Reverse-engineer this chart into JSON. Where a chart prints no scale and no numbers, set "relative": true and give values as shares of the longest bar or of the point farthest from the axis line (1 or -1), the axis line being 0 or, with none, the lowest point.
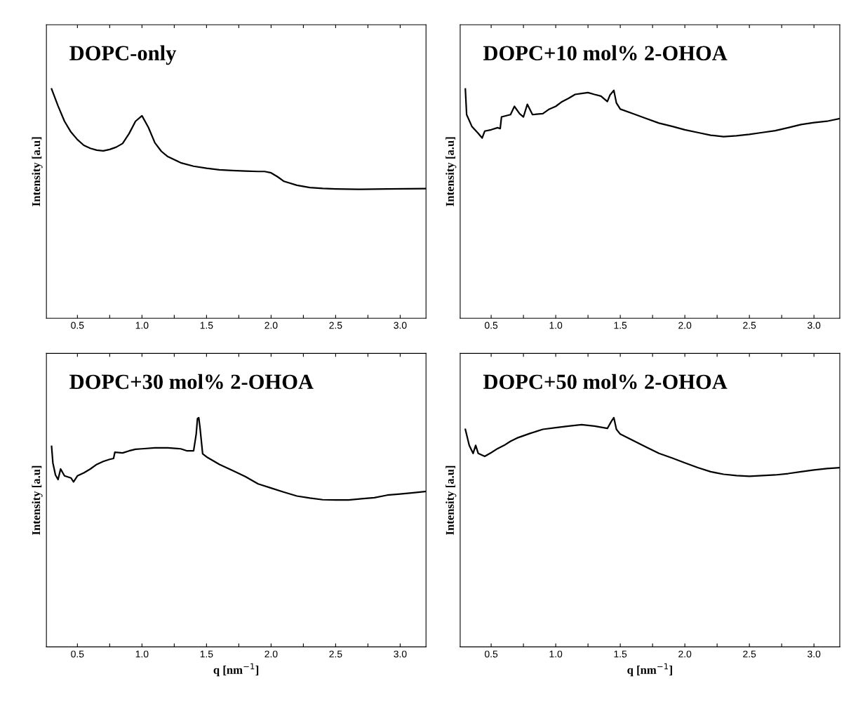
{
  "chart_data": [
    {
      "type": "line",
      "title": "DOPC-only",
      "ylabel": "Intensity [a.u]",
      "relative": true,
      "xlim": [
        0.26,
        3.2
      ],
      "xticks": [
        {
          "value": 0.5,
          "label": "0.5"
        },
        {
          "value": 0.75,
          "label": null
        },
        {
          "value": 1.0,
          "label": "1.0"
        },
        {
          "value": 1.25,
          "label": null
        },
        {
          "value": 1.5,
          "label": "1.5"
        },
        {
          "value": 1.75,
          "label": null
        },
        {
          "value": 2.0,
          "label": "2.0"
        },
        {
          "value": 2.25,
          "label": null
        },
        {
          "value": 2.5,
          "label": "2.5"
        },
        {
          "value": 2.75,
          "label": null
        },
        {
          "value": 3.0,
          "label": "3.0"
        }
      ],
      "grid": false,
      "legend": false,
      "marker": "none",
      "line_style": "solid",
      "series": [
        {
          "color": "#000000",
          "x": [
            0.3,
            0.35,
            0.4,
            0.45,
            0.5,
            0.55,
            0.6,
            0.65,
            0.7,
            0.75,
            0.8,
            0.85,
            0.9,
            0.95,
            1.0,
            1.05,
            1.1,
            1.15,
            1.2,
            1.3,
            1.4,
            1.5,
            1.6,
            1.7,
            1.8,
            1.9,
            1.95,
            2.0,
            2.05,
            2.1,
            2.2,
            2.3,
            2.4,
            2.5,
            2.7,
            2.9,
            3.2
          ],
          "values": [
            1.0,
            0.926,
            0.859,
            0.812,
            0.779,
            0.754,
            0.741,
            0.733,
            0.73,
            0.736,
            0.746,
            0.762,
            0.805,
            0.859,
            0.883,
            0.832,
            0.765,
            0.728,
            0.705,
            0.678,
            0.663,
            0.654,
            0.647,
            0.644,
            0.642,
            0.64,
            0.64,
            0.634,
            0.617,
            0.597,
            0.58,
            0.57,
            0.566,
            0.564,
            0.562,
            0.564,
            0.565
          ]
        }
      ]
    },
    {
      "type": "line",
      "title": "DOPC+10 mol% 2-OHOA",
      "ylabel": "Intensity [a.u]",
      "relative": true,
      "xlim": [
        0.26,
        3.2
      ],
      "xticks": [
        {
          "value": 0.5,
          "label": "0.5"
        },
        {
          "value": 0.75,
          "label": null
        },
        {
          "value": 1.0,
          "label": "1.0"
        },
        {
          "value": 1.25,
          "label": null
        },
        {
          "value": 1.5,
          "label": "1.5"
        },
        {
          "value": 1.75,
          "label": null
        },
        {
          "value": 2.0,
          "label": "2.0"
        },
        {
          "value": 2.25,
          "label": null
        },
        {
          "value": 2.5,
          "label": "2.5"
        },
        {
          "value": 2.75,
          "label": null
        },
        {
          "value": 3.0,
          "label": "3.0"
        }
      ],
      "grid": false,
      "legend": false,
      "marker": "none",
      "line_style": "solid",
      "series": [
        {
          "color": "#000000",
          "x": [
            0.3,
            0.31,
            0.35,
            0.4,
            0.43,
            0.45,
            0.5,
            0.55,
            0.57,
            0.58,
            0.65,
            0.68,
            0.72,
            0.75,
            0.78,
            0.82,
            0.9,
            0.95,
            1.0,
            1.05,
            1.1,
            1.15,
            1.2,
            1.25,
            1.3,
            1.35,
            1.4,
            1.42,
            1.45,
            1.47,
            1.5,
            1.6,
            1.7,
            1.8,
            1.9,
            2.0,
            2.1,
            2.2,
            2.3,
            2.4,
            2.5,
            2.6,
            2.7,
            2.8,
            2.9,
            3.0,
            3.1,
            3.2
          ],
          "values": [
            1.0,
            0.888,
            0.837,
            0.806,
            0.786,
            0.816,
            0.822,
            0.831,
            0.827,
            0.878,
            0.888,
            0.924,
            0.892,
            0.878,
            0.933,
            0.888,
            0.892,
            0.912,
            0.924,
            0.945,
            0.959,
            0.976,
            0.98,
            0.984,
            0.976,
            0.969,
            0.945,
            0.973,
            0.994,
            0.939,
            0.912,
            0.892,
            0.871,
            0.851,
            0.837,
            0.822,
            0.81,
            0.798,
            0.792,
            0.796,
            0.802,
            0.81,
            0.818,
            0.831,
            0.845,
            0.853,
            0.859,
            0.871
          ]
        }
      ]
    },
    {
      "type": "line",
      "title": "DOPC+30 mol% 2-OHOA",
      "xlabel": "q [nm$^{−1}$]",
      "ylabel": "Intensity [a.u]",
      "relative": true,
      "xlim": [
        0.26,
        3.2
      ],
      "xticks": [
        {
          "value": 0.5,
          "label": "0.5"
        },
        {
          "value": 0.75,
          "label": null
        },
        {
          "value": 1.0,
          "label": "1.0"
        },
        {
          "value": 1.25,
          "label": null
        },
        {
          "value": 1.5,
          "label": "1.5"
        },
        {
          "value": 1.75,
          "label": null
        },
        {
          "value": 2.0,
          "label": "2.0"
        },
        {
          "value": 2.25,
          "label": null
        },
        {
          "value": 2.5,
          "label": "2.5"
        },
        {
          "value": 2.75,
          "label": null
        },
        {
          "value": 3.0,
          "label": "3.0"
        }
      ],
      "grid": false,
      "legend": false,
      "marker": "none",
      "line_style": "solid",
      "series": [
        {
          "color": "#000000",
          "x": [
            0.3,
            0.31,
            0.33,
            0.35,
            0.37,
            0.4,
            0.45,
            0.47,
            0.5,
            0.55,
            0.6,
            0.65,
            0.7,
            0.75,
            0.78,
            0.79,
            0.85,
            0.9,
            0.95,
            1.0,
            1.1,
            1.2,
            1.3,
            1.35,
            1.4,
            1.42,
            1.43,
            1.44,
            1.45,
            1.47,
            1.5,
            1.6,
            1.7,
            1.8,
            1.9,
            2.0,
            2.1,
            2.2,
            2.3,
            2.4,
            2.5,
            2.6,
            2.7,
            2.8,
            2.9,
            3.0,
            3.1,
            3.2
          ],
          "values": [
            0.875,
            0.803,
            0.75,
            0.73,
            0.776,
            0.746,
            0.737,
            0.72,
            0.746,
            0.759,
            0.776,
            0.796,
            0.809,
            0.818,
            0.822,
            0.849,
            0.846,
            0.855,
            0.862,
            0.864,
            0.868,
            0.868,
            0.864,
            0.855,
            0.855,
            0.928,
            0.996,
            1.0,
            0.954,
            0.842,
            0.829,
            0.796,
            0.77,
            0.743,
            0.711,
            0.693,
            0.675,
            0.658,
            0.649,
            0.642,
            0.641,
            0.641,
            0.646,
            0.651,
            0.662,
            0.667,
            0.672,
            0.678
          ]
        }
      ]
    },
    {
      "type": "line",
      "title": "DOPC+50 mol% 2-OHOA",
      "xlabel": "q [nm$^{−1}$]",
      "ylabel": "Intensity [a.u]",
      "relative": true,
      "xlim": [
        0.26,
        3.2
      ],
      "xticks": [
        {
          "value": 0.5,
          "label": "0.5"
        },
        {
          "value": 0.75,
          "label": null
        },
        {
          "value": 1.0,
          "label": "1.0"
        },
        {
          "value": 1.25,
          "label": null
        },
        {
          "value": 1.5,
          "label": "1.5"
        },
        {
          "value": 1.75,
          "label": null
        },
        {
          "value": 2.0,
          "label": "2.0"
        },
        {
          "value": 2.25,
          "label": null
        },
        {
          "value": 2.5,
          "label": "2.5"
        },
        {
          "value": 2.75,
          "label": null
        },
        {
          "value": 3.0,
          "label": "3.0"
        }
      ],
      "grid": false,
      "legend": false,
      "marker": "none",
      "line_style": "solid",
      "series": [
        {
          "color": "#000000",
          "x": [
            0.3,
            0.33,
            0.36,
            0.38,
            0.4,
            0.45,
            0.5,
            0.55,
            0.6,
            0.65,
            0.7,
            0.8,
            0.9,
            1.0,
            1.1,
            1.2,
            1.3,
            1.4,
            1.43,
            1.45,
            1.47,
            1.5,
            1.6,
            1.7,
            1.8,
            1.9,
            2.0,
            2.1,
            2.2,
            2.3,
            2.4,
            2.5,
            2.6,
            2.7,
            2.8,
            2.9,
            3.0,
            3.1,
            3.2
          ],
          "values": [
            0.949,
            0.879,
            0.844,
            0.879,
            0.844,
            0.831,
            0.847,
            0.865,
            0.879,
            0.897,
            0.911,
            0.931,
            0.949,
            0.956,
            0.963,
            0.969,
            0.963,
            0.953,
            0.983,
            1.0,
            0.949,
            0.928,
            0.9,
            0.872,
            0.844,
            0.824,
            0.803,
            0.782,
            0.764,
            0.753,
            0.747,
            0.744,
            0.747,
            0.75,
            0.756,
            0.764,
            0.772,
            0.778,
            0.782
          ]
        }
      ]
    }
  ]
}
